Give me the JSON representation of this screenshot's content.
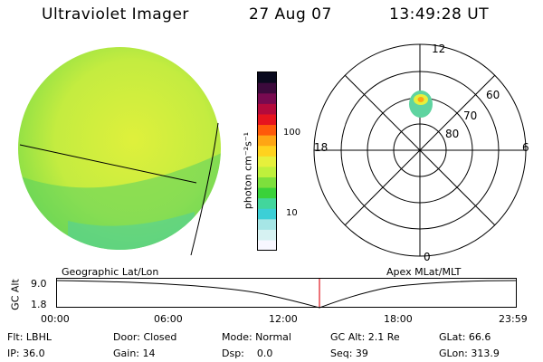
{
  "header": {
    "title": "Ultraviolet Imager",
    "date": "27 Aug 07",
    "time": "13:49:28 UT"
  },
  "colorbar": {
    "label": "photon cm⁻²s⁻¹",
    "ticks": [
      "100",
      "10"
    ],
    "colors": [
      "#f7f7ff",
      "#d6f2f2",
      "#a6e6e6",
      "#3ccfd6",
      "#42d69c",
      "#3ad23a",
      "#7de03c",
      "#bff03c",
      "#e6f03c",
      "#ffd21e",
      "#ffa514",
      "#ff5a0a",
      "#e6141e",
      "#b40a3c",
      "#780a50",
      "#3c0a3c",
      "#0a0a1e"
    ]
  },
  "polar_plot": {
    "mlt_labels": [
      "12",
      "18",
      "6",
      "0"
    ],
    "lat_labels": [
      "60",
      "70",
      "80"
    ]
  },
  "timeline": {
    "left_title": "Geographic Lat/Lon",
    "right_title": "Apex MLat/MLT",
    "y_axis_label": "GC Alt",
    "y_ticks": [
      "9.0",
      "1.8"
    ],
    "x_ticks": [
      "00:00",
      "06:00",
      "12:00",
      "18:00",
      "23:59"
    ]
  },
  "footer": {
    "flt": "Flt: LBHL",
    "door": "Door: Closed",
    "mode": "Mode: Normal",
    "gc_alt": "GC Alt: 2.1 Re",
    "glat": "GLat: 66.6",
    "ip": "IP: 36.0",
    "gain": "Gain: 14",
    "dsp": "Dsp:    0.0",
    "seq": "Seq: 39",
    "glon": "GLon: 313.9"
  }
}
